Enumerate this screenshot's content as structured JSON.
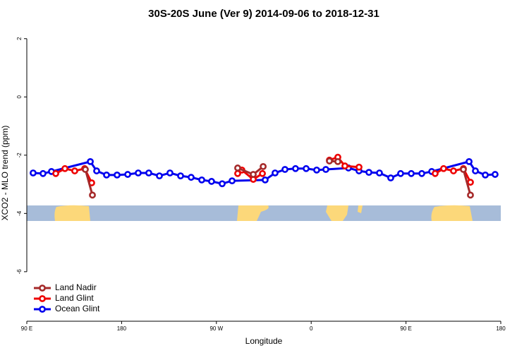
{
  "chart_data": {
    "type": "line",
    "title": "30S-20S June (Ver 9)   2014-09-06 to 2018-12-31",
    "x_label": "Longitude",
    "y_label": "XCO2 - MLO trend (ppm)",
    "xlim": [
      90,
      540
    ],
    "ylim": [
      -7.7,
      2.6
    ],
    "xticks": [
      {
        "value": 90,
        "label": "90 E"
      },
      {
        "value": 180,
        "label": "180"
      },
      {
        "value": 270,
        "label": "90 W"
      },
      {
        "value": 360,
        "label": "0"
      },
      {
        "value": 450,
        "label": "90 E"
      },
      {
        "value": 540,
        "label": "180"
      }
    ],
    "yticks": [
      2,
      0,
      -2,
      -4,
      -6
    ],
    "legend": "bottom-left",
    "series": [
      {
        "name": "Ocean Glint",
        "color": "#0000ee",
        "x": [
          96.0,
          105.4,
          113.4,
          150.3,
          156.3,
          165.7,
          175.7,
          185.8,
          195.8,
          205.8,
          215.9,
          225.9,
          236.0,
          246.0,
          256.1,
          265.4,
          275.5,
          284.9,
          316.3,
          325.7,
          335.1,
          345.1,
          355.2,
          365.2,
          373.9,
          395.4,
          405.4,
          414.8,
          424.8,
          435.5,
          444.9,
          455.0,
          465.0,
          474.4,
          509.9,
          515.9,
          525.3,
          534.6
        ],
        "values": [
          -2.61,
          -2.63,
          -2.56,
          -2.22,
          -2.54,
          -2.68,
          -2.68,
          -2.66,
          -2.61,
          -2.61,
          -2.71,
          -2.61,
          -2.71,
          -2.76,
          -2.85,
          -2.9,
          -2.98,
          -2.88,
          -2.85,
          -2.61,
          -2.49,
          -2.46,
          -2.46,
          -2.51,
          -2.49,
          -2.44,
          -2.54,
          -2.59,
          -2.61,
          -2.78,
          -2.63,
          -2.63,
          -2.63,
          -2.56,
          -2.22,
          -2.54,
          -2.68,
          -2.66
        ]
      },
      {
        "name": "Land Glint",
        "color": "#ee0000",
        "x": [
          117.5,
          126.2,
          135.5,
          144.9,
          151.6,
          null,
          290.2,
          294.2,
          305.0,
          313.7,
          null,
          377.3,
          385.3,
          392.0,
          405.4,
          null,
          477.7,
          485.7,
          495.1,
          504.5,
          511.2
        ],
        "values": [
          -2.63,
          -2.46,
          -2.54,
          -2.46,
          -2.95,
          null,
          -2.63,
          -2.51,
          -2.83,
          -2.63,
          null,
          -2.17,
          -2.07,
          -2.37,
          -2.41,
          null,
          -2.63,
          -2.46,
          -2.54,
          -2.46,
          -2.93
        ]
      },
      {
        "name": "Land Nadir",
        "color": "#a52a2a",
        "x": [
          145.6,
          152.3,
          null,
          290.2,
          305.0,
          314.4,
          null,
          377.3,
          385.3,
          null,
          504.5,
          511.2
        ],
        "values": [
          -2.49,
          -3.37,
          null,
          -2.44,
          -2.66,
          -2.39,
          null,
          -2.2,
          -2.22,
          null,
          -2.49,
          -3.37
        ]
      }
    ]
  }
}
